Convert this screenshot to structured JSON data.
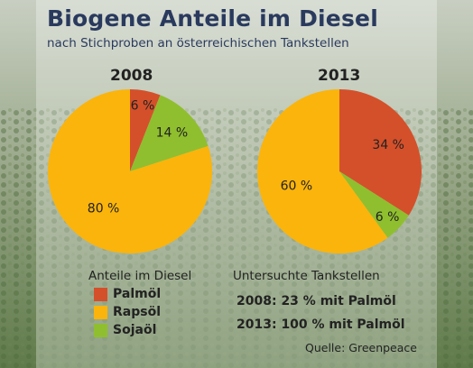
{
  "title": "Biogene Anteile im Diesel",
  "subtitle": "nach Stichproben an österreichischen Tankstellen",
  "colors": {
    "palmoel": "#d4502a",
    "rapsoel": "#fbb40b",
    "sojaoel": "#8fbf2e"
  },
  "chart_data": [
    {
      "type": "pie",
      "title": "2008",
      "labels": [
        "Palmöl",
        "Sojaöl",
        "Rapsöl"
      ],
      "values": [
        6,
        14,
        80
      ],
      "value_labels": [
        "6 %",
        "14 %",
        "80 %"
      ]
    },
    {
      "type": "pie",
      "title": "2013",
      "labels": [
        "Palmöl",
        "Sojaöl",
        "Rapsöl"
      ],
      "values": [
        34,
        6,
        60
      ],
      "value_labels": [
        "34 %",
        "6 %",
        "60 %"
      ]
    }
  ],
  "legend": {
    "title": "Anteile im Diesel",
    "items": [
      "Palmöl",
      "Rapsöl",
      "Sojaöl"
    ]
  },
  "info": {
    "title": "Untersuchte Tankstellen",
    "line_2008": "2008: 23 % mit Palmöl",
    "line_2013": "2013: 100 % mit Palmöl"
  },
  "source": "Quelle: Greenpeace"
}
